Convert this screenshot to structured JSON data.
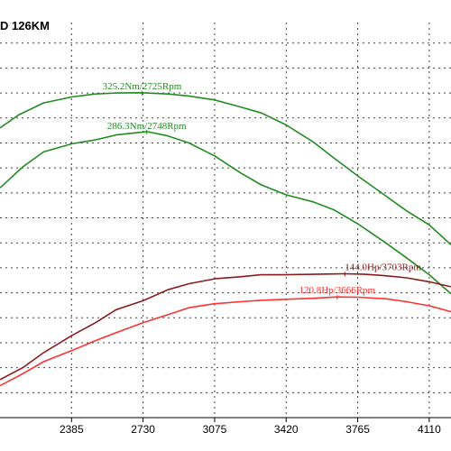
{
  "chart_data": {
    "type": "line",
    "title": "D 126KM",
    "xlabel": "",
    "ylabel": "",
    "x_ticks": [
      2385,
      2730,
      3075,
      3420,
      3765,
      4110
    ],
    "xlim": [
      2040,
      4215
    ],
    "ylim": [
      0,
      400
    ],
    "grid": true,
    "series": [
      {
        "color": "#228b22",
        "x": [
          2040,
          2130,
          2250,
          2385,
          2500,
          2600,
          2725,
          2850,
          2950,
          3075,
          3200,
          3300,
          3420,
          3550,
          3650,
          3765,
          3900,
          4000,
          4110,
          4215
        ],
        "values": [
          290,
          303,
          315,
          321,
          324,
          325,
          325.2,
          324,
          322,
          318,
          311,
          305,
          293,
          276,
          260,
          242,
          222,
          207,
          193,
          173
        ]
      },
      {
        "color": "#228b22",
        "x": [
          2040,
          2150,
          2250,
          2385,
          2500,
          2600,
          2748,
          2850,
          2950,
          3075,
          3200,
          3300,
          3420,
          3550,
          3650,
          3765,
          3900,
          4000,
          4110,
          4215
        ],
        "values": [
          230,
          251,
          266,
          274,
          278,
          283,
          286.3,
          282,
          275,
          262,
          245,
          233,
          223,
          216,
          208,
          194,
          175,
          160,
          143,
          124
        ]
      },
      {
        "color": "#8b1a1a",
        "x": [
          2040,
          2150,
          2250,
          2385,
          2500,
          2600,
          2730,
          2850,
          2950,
          3075,
          3200,
          3300,
          3420,
          3550,
          3650,
          3703,
          3800,
          3900,
          4000,
          4110,
          4215
        ],
        "values": [
          38,
          50,
          65,
          82,
          95,
          108,
          117,
          128,
          134,
          139,
          141,
          143,
          143,
          143.5,
          143.8,
          144.0,
          143.5,
          142,
          140,
          136,
          131
        ]
      },
      {
        "color": "#ff3030",
        "x": [
          2040,
          2150,
          2250,
          2385,
          2500,
          2600,
          2730,
          2850,
          2950,
          3075,
          3200,
          3300,
          3420,
          3550,
          3666,
          3765,
          3900,
          4000,
          4110,
          4215
        ],
        "values": [
          32,
          44,
          56,
          67,
          77,
          85,
          95,
          103,
          110,
          114,
          116,
          117.5,
          118.5,
          119.5,
          120.8,
          120.5,
          119,
          116,
          112,
          106
        ]
      }
    ],
    "annotations": [
      {
        "text": "325.2Nm/2725Rpm",
        "color": "#228b22",
        "x": 2725,
        "y": 325.2,
        "anchor": "middle",
        "dy": -4
      },
      {
        "text": "286.3Nm/2748Rpm",
        "color": "#228b22",
        "x": 2748,
        "y": 286.3,
        "anchor": "middle",
        "dy": -3
      },
      {
        "text": "144.0Hp/3703Rpm",
        "color": "#8b1a1a",
        "x": 3703,
        "y": 144.0,
        "anchor": "start",
        "dy": -4
      },
      {
        "text": "120.8Hp/3666Rpm",
        "color": "#ff3030",
        "x": 3666,
        "y": 120.8,
        "anchor": "middle",
        "dy": -4
      }
    ]
  }
}
